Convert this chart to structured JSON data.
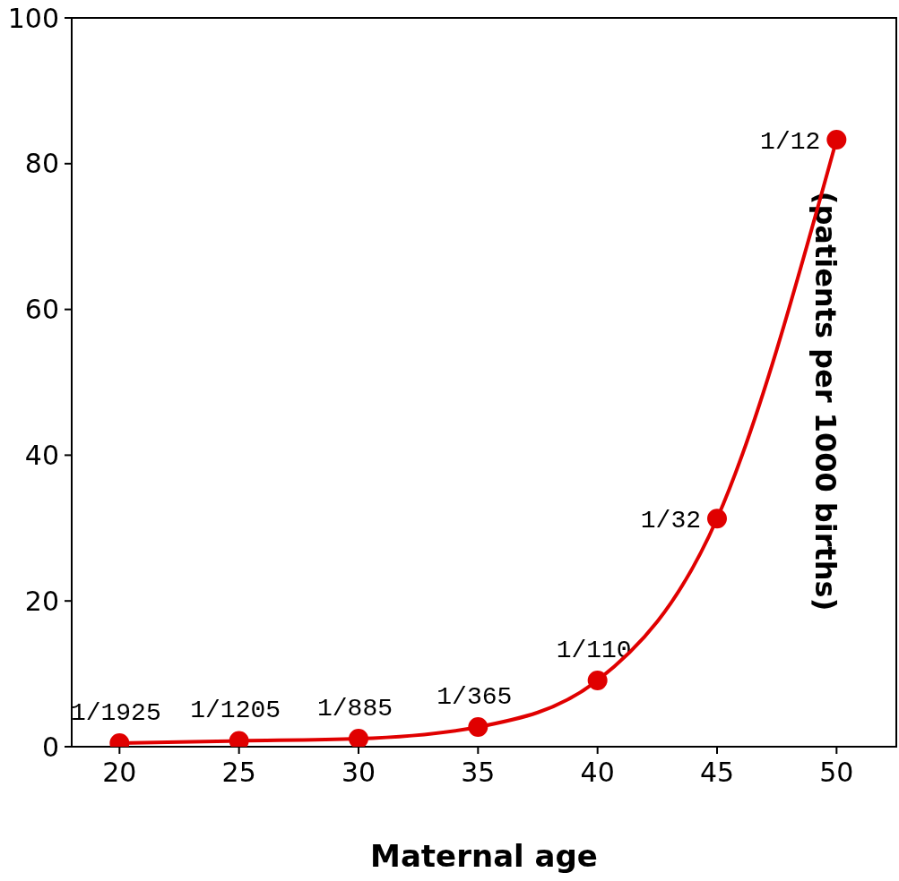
{
  "chart_data": {
    "type": "line",
    "xlabel": "Maternal age",
    "ylabel": "(patients per 1000 births)",
    "x": [
      20,
      25,
      30,
      35,
      40,
      45,
      50
    ],
    "values": [
      0.5,
      0.8,
      1.1,
      2.7,
      9.1,
      31.3,
      83.3
    ],
    "annotations": [
      {
        "text": "1/1925",
        "x": 20,
        "y": 0.5
      },
      {
        "text": "1/1205",
        "x": 25,
        "y": 0.8
      },
      {
        "text": "1/885",
        "x": 30,
        "y": 1.1
      },
      {
        "text": "1/365",
        "x": 35,
        "y": 2.7
      },
      {
        "text": "1/110",
        "x": 40,
        "y": 9.1
      },
      {
        "text": "1/32",
        "x": 45,
        "y": 31.3
      },
      {
        "text": "1/12",
        "x": 50,
        "y": 83.3
      }
    ],
    "color": "#e00000",
    "marker": "circle",
    "line_style": "solid",
    "grid": false,
    "legend": false,
    "xlim": [
      18,
      52.5
    ],
    "xticks": [
      20,
      25,
      30,
      35,
      40,
      45,
      50
    ],
    "ylim": [
      0,
      100
    ],
    "yticks": [
      0,
      20,
      40,
      60,
      80,
      100
    ]
  }
}
